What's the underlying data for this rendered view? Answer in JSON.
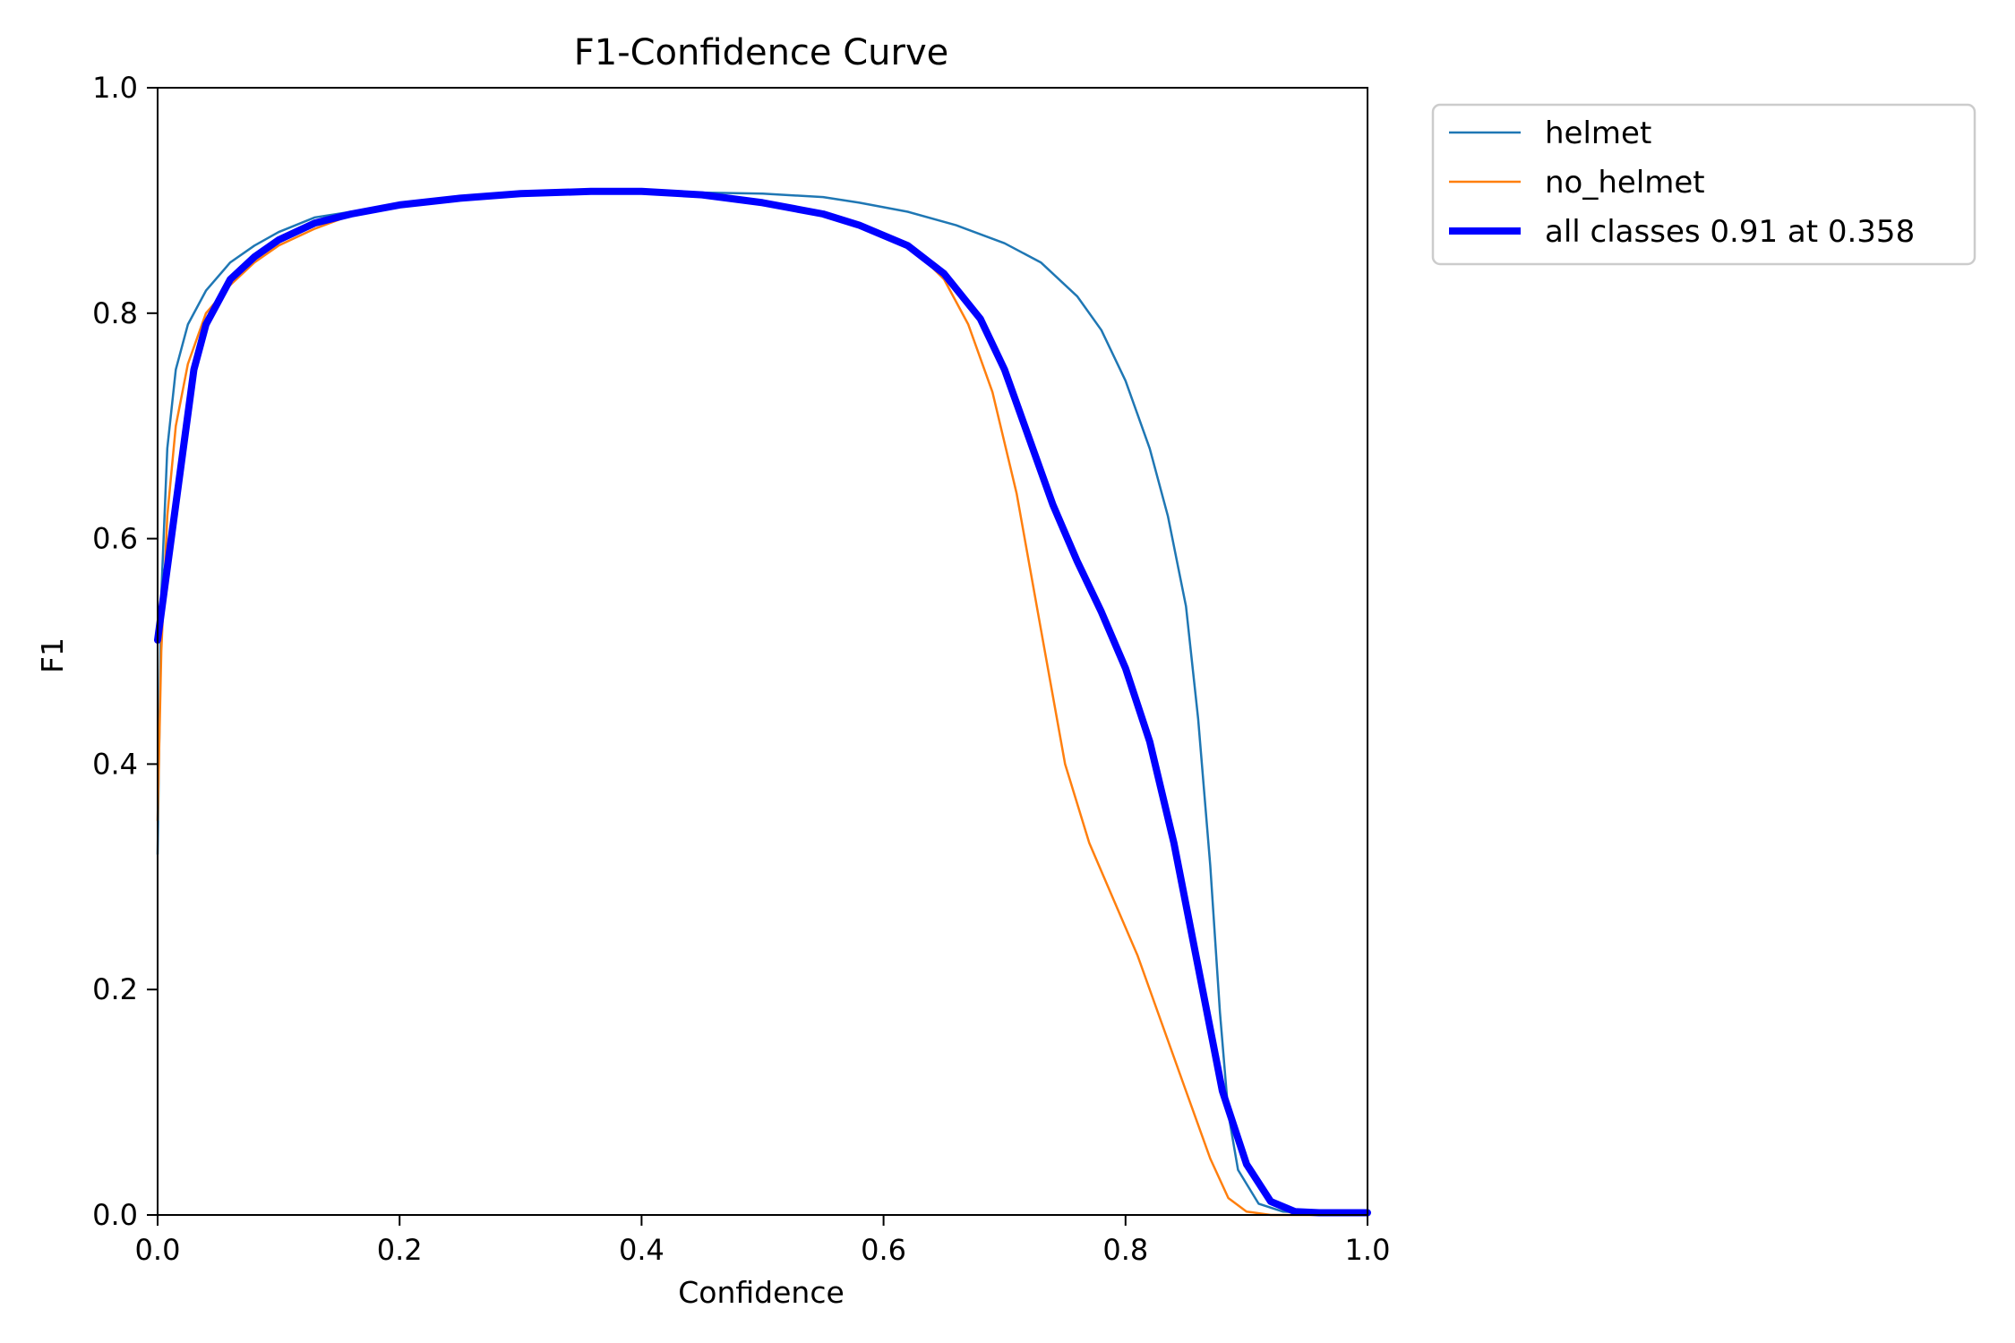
{
  "chart_data": {
    "type": "line",
    "title": "F1-Confidence Curve",
    "xlabel": "Confidence",
    "ylabel": "F1",
    "xlim": [
      0.0,
      1.0
    ],
    "ylim": [
      0.0,
      1.0
    ],
    "xticks": [
      "0.0",
      "0.2",
      "0.4",
      "0.6",
      "0.8",
      "1.0"
    ],
    "yticks": [
      "0.0",
      "0.2",
      "0.4",
      "0.6",
      "0.8",
      "1.0"
    ],
    "grid": false,
    "legend_position": "outside-top-right",
    "series": [
      {
        "name": "helmet",
        "color": "#1f77b4",
        "line_width": "thin",
        "points": [
          [
            0.0,
            0.32
          ],
          [
            0.003,
            0.55
          ],
          [
            0.008,
            0.68
          ],
          [
            0.015,
            0.75
          ],
          [
            0.025,
            0.79
          ],
          [
            0.04,
            0.82
          ],
          [
            0.06,
            0.845
          ],
          [
            0.08,
            0.86
          ],
          [
            0.1,
            0.872
          ],
          [
            0.13,
            0.885
          ],
          [
            0.16,
            0.89
          ],
          [
            0.2,
            0.895
          ],
          [
            0.25,
            0.902
          ],
          [
            0.3,
            0.907
          ],
          [
            0.35,
            0.908
          ],
          [
            0.4,
            0.908
          ],
          [
            0.45,
            0.907
          ],
          [
            0.5,
            0.906
          ],
          [
            0.55,
            0.903
          ],
          [
            0.58,
            0.898
          ],
          [
            0.62,
            0.89
          ],
          [
            0.66,
            0.878
          ],
          [
            0.7,
            0.862
          ],
          [
            0.73,
            0.845
          ],
          [
            0.76,
            0.815
          ],
          [
            0.78,
            0.785
          ],
          [
            0.8,
            0.74
          ],
          [
            0.82,
            0.68
          ],
          [
            0.835,
            0.62
          ],
          [
            0.85,
            0.54
          ],
          [
            0.86,
            0.44
          ],
          [
            0.87,
            0.31
          ],
          [
            0.878,
            0.18
          ],
          [
            0.885,
            0.09
          ],
          [
            0.893,
            0.04
          ],
          [
            0.91,
            0.01
          ],
          [
            0.93,
            0.003
          ],
          [
            0.95,
            0.002
          ],
          [
            1.0,
            0.002
          ]
        ]
      },
      {
        "name": "no_helmet",
        "color": "#ff7f0e",
        "line_width": "thin",
        "points": [
          [
            0.0,
            0.35
          ],
          [
            0.003,
            0.5
          ],
          [
            0.008,
            0.62
          ],
          [
            0.015,
            0.7
          ],
          [
            0.025,
            0.755
          ],
          [
            0.04,
            0.8
          ],
          [
            0.06,
            0.825
          ],
          [
            0.08,
            0.845
          ],
          [
            0.1,
            0.86
          ],
          [
            0.13,
            0.875
          ],
          [
            0.16,
            0.887
          ],
          [
            0.2,
            0.895
          ],
          [
            0.25,
            0.902
          ],
          [
            0.3,
            0.907
          ],
          [
            0.35,
            0.908
          ],
          [
            0.4,
            0.907
          ],
          [
            0.45,
            0.903
          ],
          [
            0.5,
            0.897
          ],
          [
            0.55,
            0.888
          ],
          [
            0.58,
            0.878
          ],
          [
            0.62,
            0.862
          ],
          [
            0.65,
            0.83
          ],
          [
            0.67,
            0.79
          ],
          [
            0.69,
            0.73
          ],
          [
            0.71,
            0.64
          ],
          [
            0.73,
            0.52
          ],
          [
            0.75,
            0.4
          ],
          [
            0.77,
            0.33
          ],
          [
            0.79,
            0.28
          ],
          [
            0.81,
            0.23
          ],
          [
            0.83,
            0.17
          ],
          [
            0.85,
            0.11
          ],
          [
            0.87,
            0.05
          ],
          [
            0.885,
            0.015
          ],
          [
            0.9,
            0.003
          ],
          [
            0.92,
            0.0
          ],
          [
            1.0,
            0.0
          ]
        ]
      },
      {
        "name": "all classes 0.91 at 0.358",
        "color": "#0000ff",
        "line_width": "thick",
        "points": [
          [
            0.0,
            0.51
          ],
          [
            0.01,
            0.59
          ],
          [
            0.02,
            0.67
          ],
          [
            0.03,
            0.75
          ],
          [
            0.04,
            0.79
          ],
          [
            0.06,
            0.83
          ],
          [
            0.08,
            0.85
          ],
          [
            0.1,
            0.865
          ],
          [
            0.13,
            0.88
          ],
          [
            0.16,
            0.888
          ],
          [
            0.2,
            0.896
          ],
          [
            0.25,
            0.902
          ],
          [
            0.3,
            0.906
          ],
          [
            0.358,
            0.908
          ],
          [
            0.4,
            0.908
          ],
          [
            0.45,
            0.905
          ],
          [
            0.5,
            0.898
          ],
          [
            0.55,
            0.888
          ],
          [
            0.58,
            0.878
          ],
          [
            0.62,
            0.86
          ],
          [
            0.65,
            0.835
          ],
          [
            0.68,
            0.795
          ],
          [
            0.7,
            0.75
          ],
          [
            0.72,
            0.69
          ],
          [
            0.74,
            0.63
          ],
          [
            0.76,
            0.58
          ],
          [
            0.78,
            0.535
          ],
          [
            0.8,
            0.485
          ],
          [
            0.82,
            0.42
          ],
          [
            0.84,
            0.33
          ],
          [
            0.86,
            0.22
          ],
          [
            0.88,
            0.11
          ],
          [
            0.9,
            0.045
          ],
          [
            0.92,
            0.012
          ],
          [
            0.94,
            0.003
          ],
          [
            0.96,
            0.002
          ],
          [
            1.0,
            0.002
          ]
        ]
      }
    ]
  }
}
